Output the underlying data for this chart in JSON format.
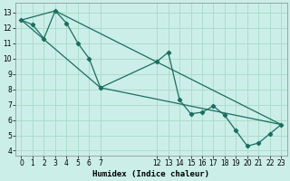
{
  "xlabel": "Humidex (Indice chaleur)",
  "bg_color": "#cceee8",
  "grid_color": "#aaddcc",
  "line_color": "#1a6e60",
  "xlim": [
    -0.5,
    23.5
  ],
  "ylim": [
    3.7,
    13.6
  ],
  "yticks": [
    4,
    5,
    6,
    7,
    8,
    9,
    10,
    11,
    12,
    13
  ],
  "xticks": [
    0,
    1,
    2,
    3,
    4,
    5,
    6,
    7,
    12,
    13,
    14,
    15,
    16,
    17,
    18,
    19,
    20,
    21,
    22,
    23
  ],
  "series1_x": [
    0,
    1,
    2,
    3,
    4,
    5,
    6,
    7,
    12,
    13,
    14,
    15,
    16,
    17,
    18,
    19,
    20,
    21,
    22,
    23
  ],
  "series1_y": [
    12.5,
    12.2,
    11.3,
    13.1,
    12.3,
    11.0,
    10.0,
    8.1,
    9.8,
    10.4,
    7.3,
    6.4,
    6.5,
    6.9,
    6.3,
    5.3,
    4.3,
    4.5,
    5.1,
    5.7
  ],
  "upper_line_x": [
    0,
    3,
    23
  ],
  "upper_line_y": [
    12.5,
    13.1,
    5.7
  ],
  "lower_line_x": [
    0,
    7,
    23
  ],
  "lower_line_y": [
    12.5,
    8.1,
    5.7
  ]
}
